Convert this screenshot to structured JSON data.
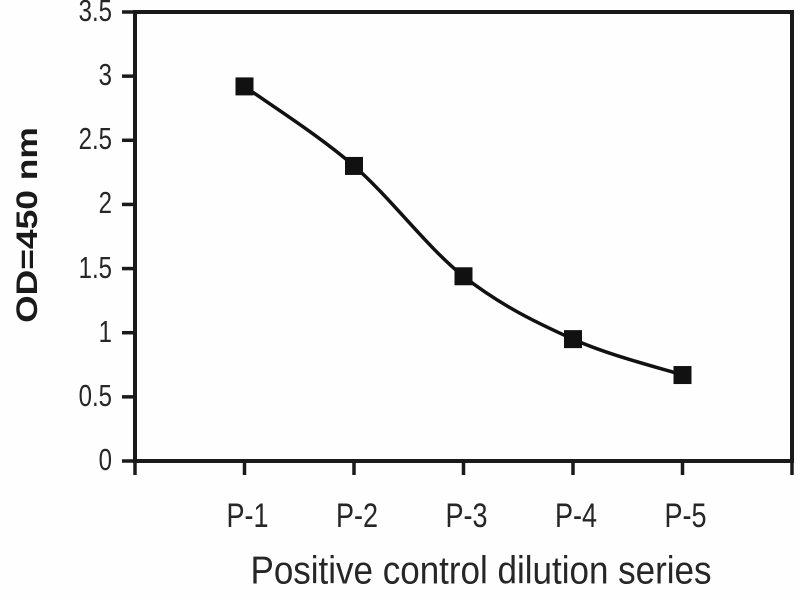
{
  "chart_data": {
    "type": "line",
    "title": "",
    "categories": [
      "P-1",
      "P-2",
      "P-3",
      "P-4",
      "P-5"
    ],
    "values": [
      2.92,
      2.3,
      1.44,
      0.95,
      0.67
    ],
    "xlabel": "Positive control dilution series",
    "ylabel": "OD=450 nm",
    "ylim": [
      0,
      3.5
    ],
    "yticks": [
      0,
      0.5,
      1,
      1.5,
      2,
      2.5,
      3,
      3.5
    ],
    "ytick_labels": [
      "0",
      "0.5",
      "1",
      "1.5",
      "2",
      "2.5",
      "3",
      "3.5"
    ],
    "grid": false,
    "legend": "none",
    "frame": true,
    "line_smooth": true,
    "marker": "square",
    "marker_size_px": 18,
    "colors": {
      "line": "#111111",
      "marker": "#111111",
      "frame": "#1a1a1a",
      "tick": "#1a1a1a",
      "label": "#262626",
      "background": "#fefefe"
    }
  }
}
